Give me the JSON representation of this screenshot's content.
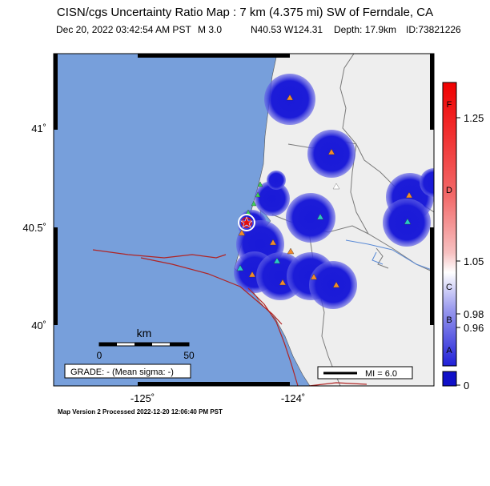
{
  "title": "CISN/cgs Uncertainty Ratio Map : 7 km (4.375 mi) SW of Ferndale, CA",
  "event": {
    "datetime": "Dec 20, 2022 03:42:54 AM PST",
    "magnitude": "M 3.0",
    "location": "N40.53 W124.31",
    "depth": "Depth: 17.9km",
    "id": "ID:73821226"
  },
  "axes": {
    "lat_labels": [
      "41˚",
      "40.5˚",
      "40˚"
    ],
    "lon_labels": [
      "-125˚",
      "-124˚"
    ]
  },
  "scale_bar": {
    "unit": "km",
    "min_label": "0",
    "max_label": "50"
  },
  "grade_box": "GRADE: - (Mean sigma: -)",
  "mi_legend": "MI = 6.0",
  "colorbar": {
    "grade_letters": [
      "F",
      "D",
      "C",
      "B",
      "A"
    ],
    "ratio_labels": [
      "1.25",
      "1.05",
      "0.98",
      "0.96",
      "0"
    ]
  },
  "footer": "Map Version 2 Processed 2022-12-20 12:06:40 PM PST",
  "colors": {
    "ocean": "#779fdb",
    "land": "#eeeeee",
    "uncertainty_blue": "#1a1ad8",
    "fault": "#b02424",
    "border": "#000000"
  },
  "stations_legend": [
    "station-orange-triangle",
    "station-cyan-triangle",
    "station-green-triangle",
    "station-white-triangle"
  ],
  "epicenter_icon": "epicenter-star-icon"
}
